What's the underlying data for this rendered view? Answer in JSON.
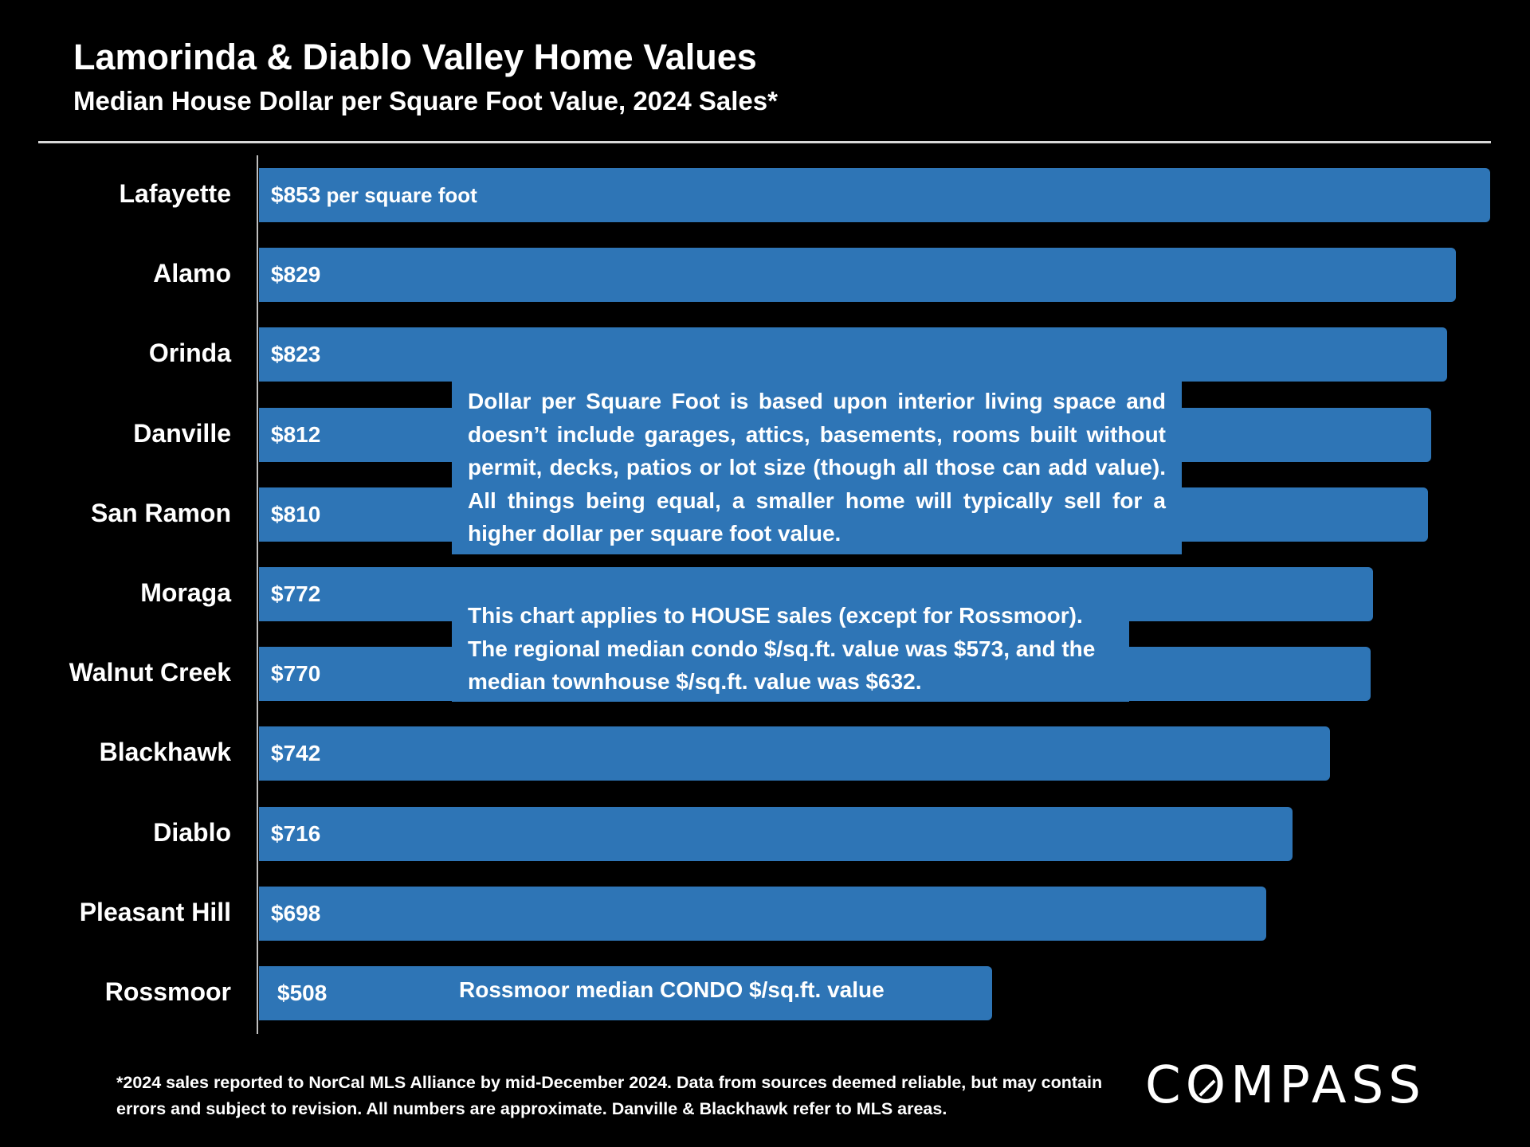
{
  "title": "Lamorinda & Diablo Valley Home Values",
  "subtitle": "Median House Dollar per Square Foot Value, 2024 Sales*",
  "chart_data": {
    "type": "bar",
    "orientation": "horizontal",
    "categories": [
      "Lafayette",
      "Alamo",
      "Orinda",
      "Danville",
      "San Ramon",
      "Moraga",
      "Walnut Creek",
      "Blackhawk",
      "Diablo",
      "Pleasant Hill",
      "Rossmoor"
    ],
    "values": [
      853,
      829,
      823,
      812,
      810,
      772,
      770,
      742,
      716,
      698,
      508
    ],
    "value_labels": [
      "$853",
      "$829",
      "$823",
      "$812",
      "$810",
      "$772",
      "$770",
      "$742",
      "$716",
      "$698",
      "$508"
    ],
    "first_label_suffix": "per square foot",
    "bar_color": "#2e75b6",
    "grid": false
  },
  "notes": {
    "definition": "Dollar per Square Foot is based upon interior living space and doesn’t include garages, attics, basements, rooms built without permit, decks, patios or lot size (though all those can add value). All things being equal, a smaller home will typically sell for a higher dollar per square foot value.",
    "house_sales": "This chart applies to HOUSE sales (except for Rossmoor). The regional median condo $/sq.ft. value was $573, and the median townhouse $/sq.ft. value was $632.",
    "rossmoor": "Rossmoor median CONDO $/sq.ft. value"
  },
  "footnote": "*2024 sales reported to NorCal MLS Alliance by mid-December 2024. Data from sources deemed reliable, but may contain errors and subject to revision. All numbers are approximate. Danville & Blackhawk refer to MLS areas.",
  "logo": {
    "pre": "C",
    "o": "O",
    "post": "MPASS"
  },
  "colors": {
    "background": "#000000",
    "bar": "#2e75b6",
    "text": "#ffffff"
  }
}
